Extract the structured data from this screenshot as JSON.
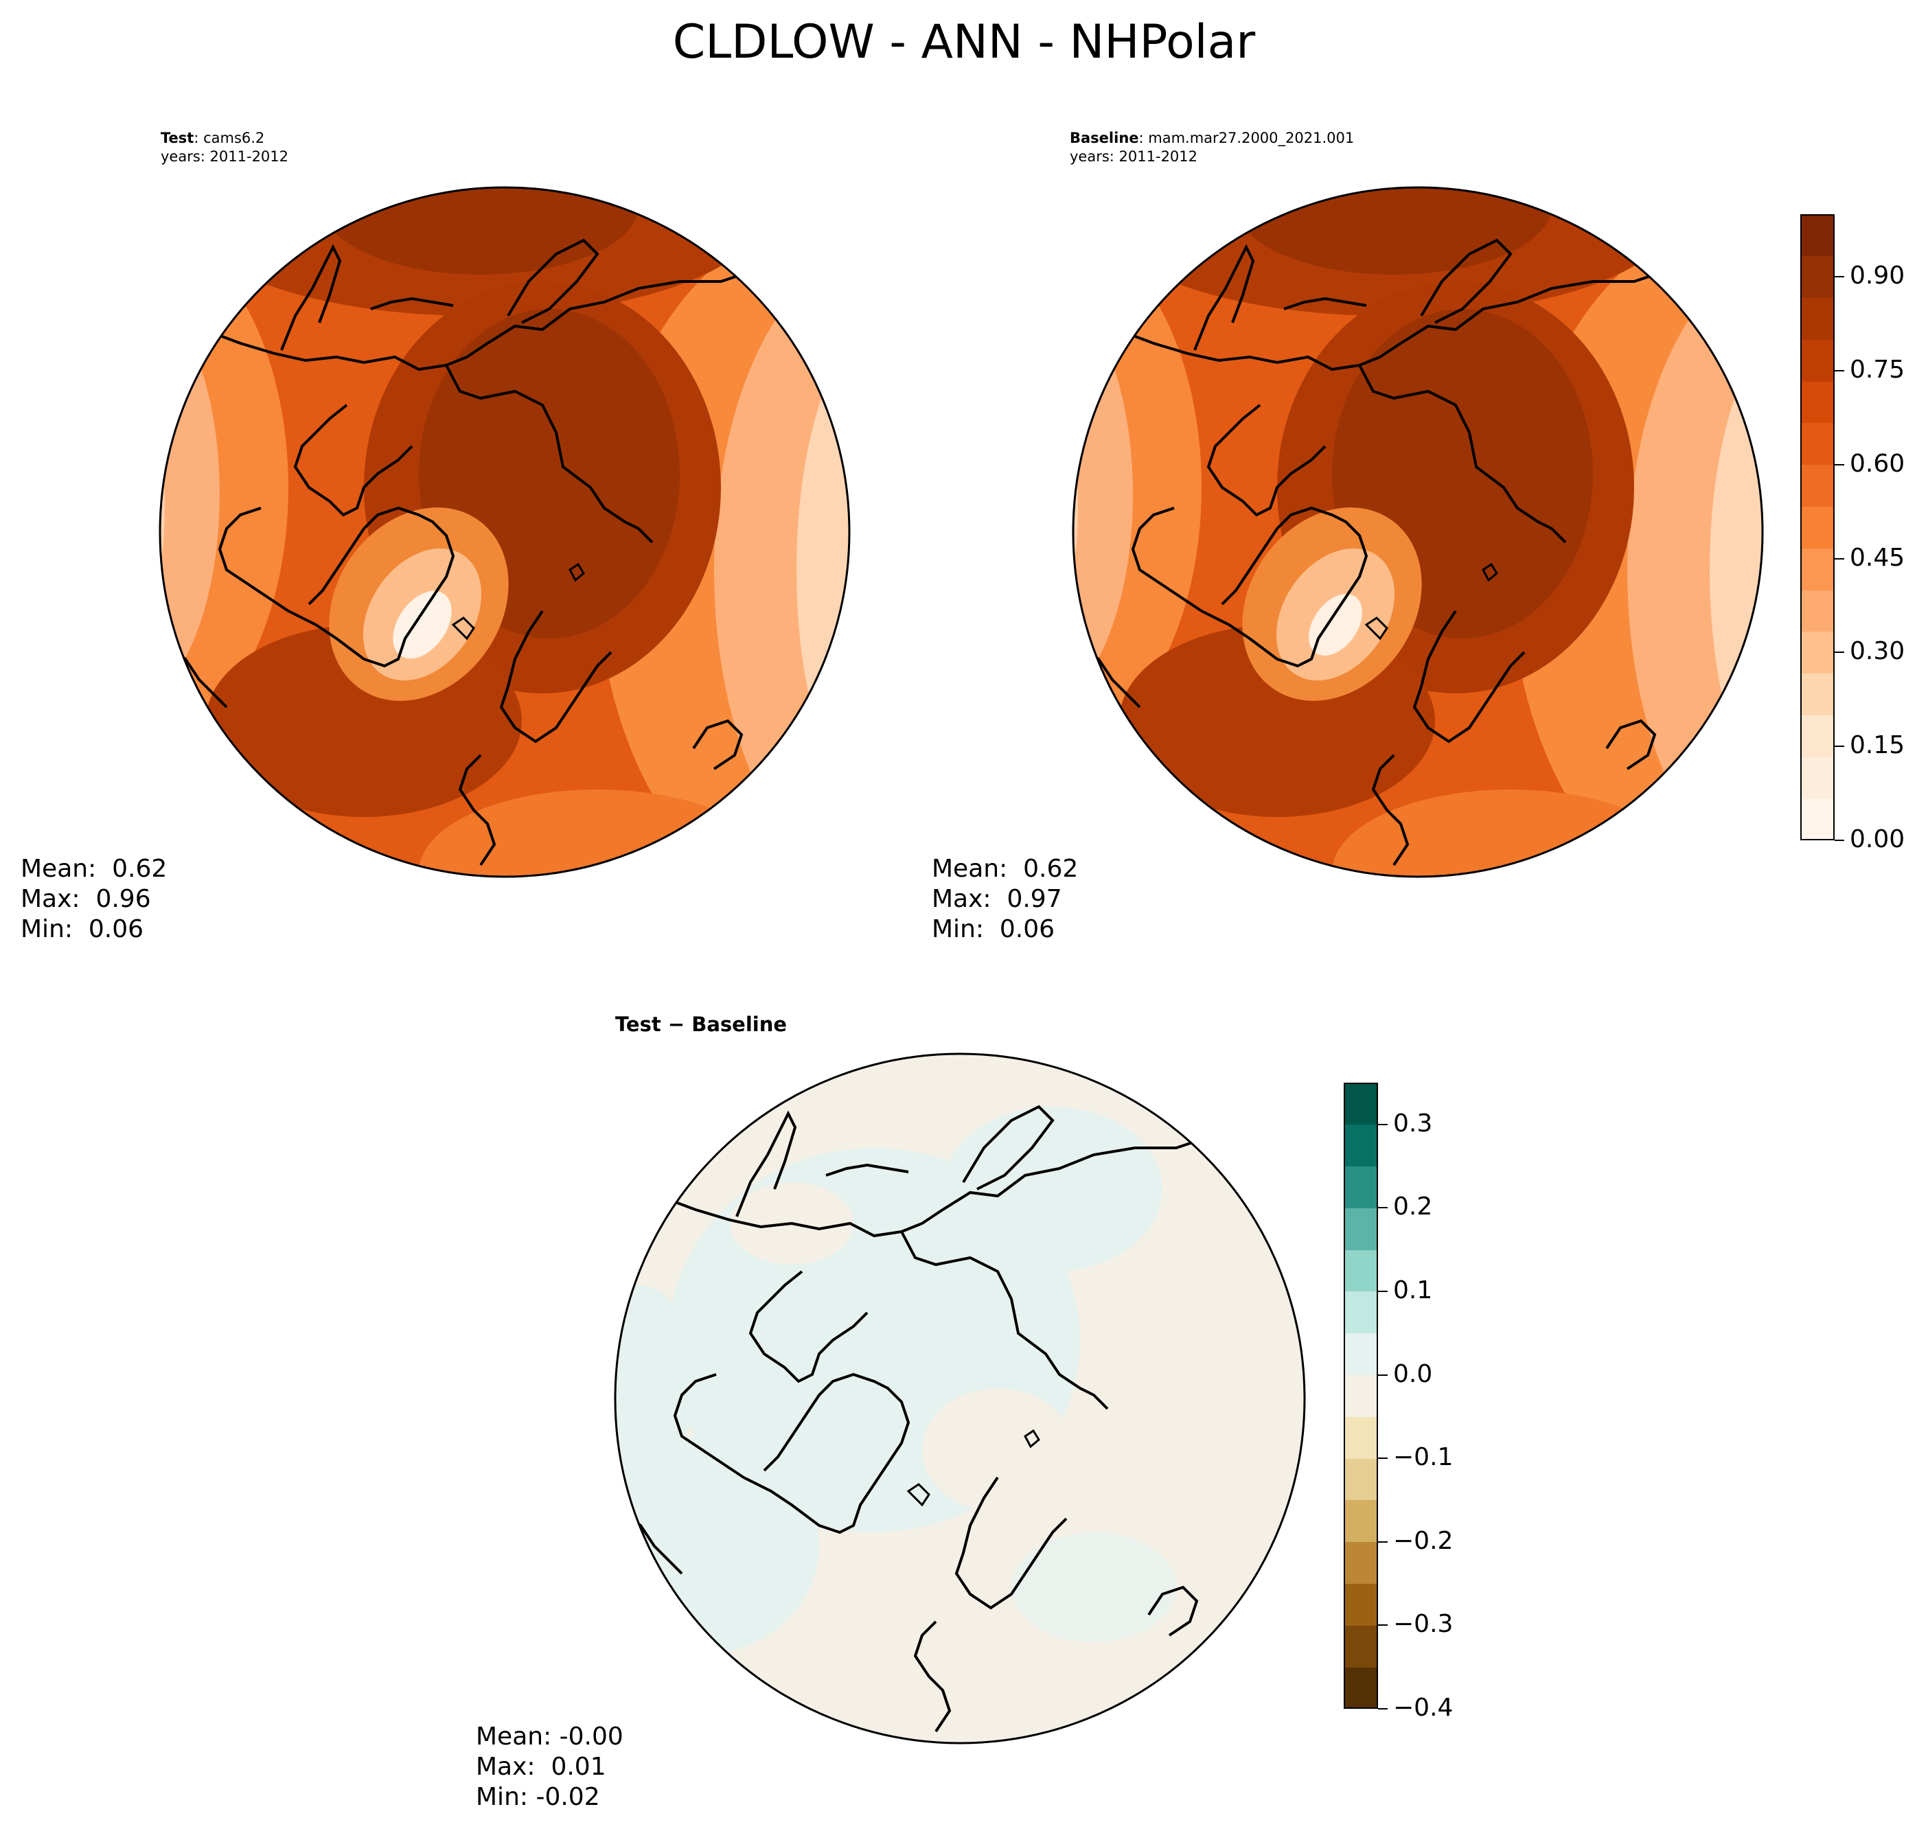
{
  "figure": {
    "title": "CLDLOW - ANN - NHPolar"
  },
  "panels": {
    "test": {
      "label_bold": "Test",
      "label_value": ": cams6.2",
      "years": "years: 2011-2012",
      "mean": "Mean:  0.62",
      "max": "Max:  0.96",
      "min": "Min:  0.06"
    },
    "baseline": {
      "label_bold": "Baseline",
      "label_value": ": mam.mar27.2000_2021.001",
      "years": "years: 2011-2012",
      "mean": "Mean:  0.62",
      "max": "Max:  0.97",
      "min": "Min:  0.06"
    },
    "diff": {
      "title_left": "Test",
      "title_op": " − ",
      "title_right": "Baseline",
      "mean": "Mean: -0.00",
      "max": "Max:  0.01",
      "min": "Min: -0.02"
    }
  },
  "colorbars": {
    "main": {
      "ticks": [
        "0.00",
        "0.15",
        "0.30",
        "0.45",
        "0.60",
        "0.75",
        "0.90"
      ],
      "tick_values": [
        0.0,
        0.15,
        0.3,
        0.45,
        0.6,
        0.75,
        0.9
      ],
      "range": [
        0.0,
        1.0
      ],
      "colors": [
        "#fff5eb",
        "#feeddc",
        "#fee6ce",
        "#fdd6af",
        "#fdc08e",
        "#fdab6e",
        "#fd9650",
        "#f98134",
        "#ef6c22",
        "#e45a12",
        "#d64a08",
        "#c03e02",
        "#ab3703",
        "#963103",
        "#7f2704"
      ]
    },
    "diff": {
      "ticks": [
        "0.3",
        "0.2",
        "0.1",
        "0.0",
        "−0.1",
        "−0.2",
        "−0.3",
        "−0.4"
      ],
      "tick_values": [
        0.3,
        0.2,
        0.1,
        0.0,
        -0.1,
        -0.2,
        -0.3,
        -0.4
      ],
      "range": [
        -0.4,
        0.35
      ],
      "colors": [
        "#543005",
        "#7a4809",
        "#9c6214",
        "#bb8636",
        "#d4af62",
        "#e6cd94",
        "#f2e3b8",
        "#f5f0e6",
        "#e6f2ef",
        "#c1e8e1",
        "#91d4c8",
        "#5cb3a8",
        "#2a8f85",
        "#087166",
        "#00574a"
      ]
    }
  },
  "chart_data": [
    {
      "type": "heatmap",
      "title": "Test: cams6.2",
      "projection": "north polar stereographic",
      "variable": "CLDLOW",
      "season": "ANN",
      "years": "2011-2012",
      "stats": {
        "mean": 0.62,
        "max": 0.96,
        "min": 0.06
      },
      "colorbar_range": [
        0.0,
        1.0
      ]
    },
    {
      "type": "heatmap",
      "title": "Baseline: mam.mar27.2000_2021.001",
      "projection": "north polar stereographic",
      "variable": "CLDLOW",
      "season": "ANN",
      "years": "2011-2012",
      "stats": {
        "mean": 0.62,
        "max": 0.97,
        "min": 0.06
      },
      "colorbar_range": [
        0.0,
        1.0
      ]
    },
    {
      "type": "heatmap",
      "title": "Test − Baseline",
      "projection": "north polar stereographic",
      "stats": {
        "mean": -0.0,
        "max": 0.01,
        "min": -0.02
      },
      "colorbar_range": [
        -0.4,
        0.35
      ]
    }
  ]
}
